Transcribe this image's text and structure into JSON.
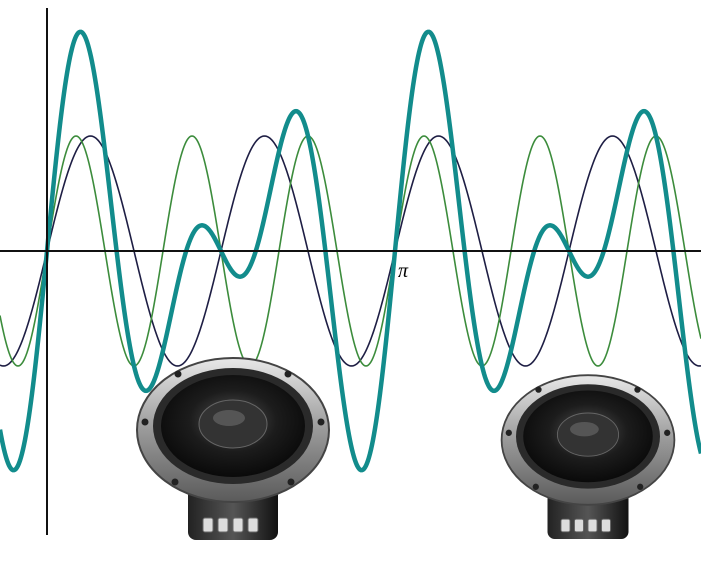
{
  "axis_label": "π"
}
